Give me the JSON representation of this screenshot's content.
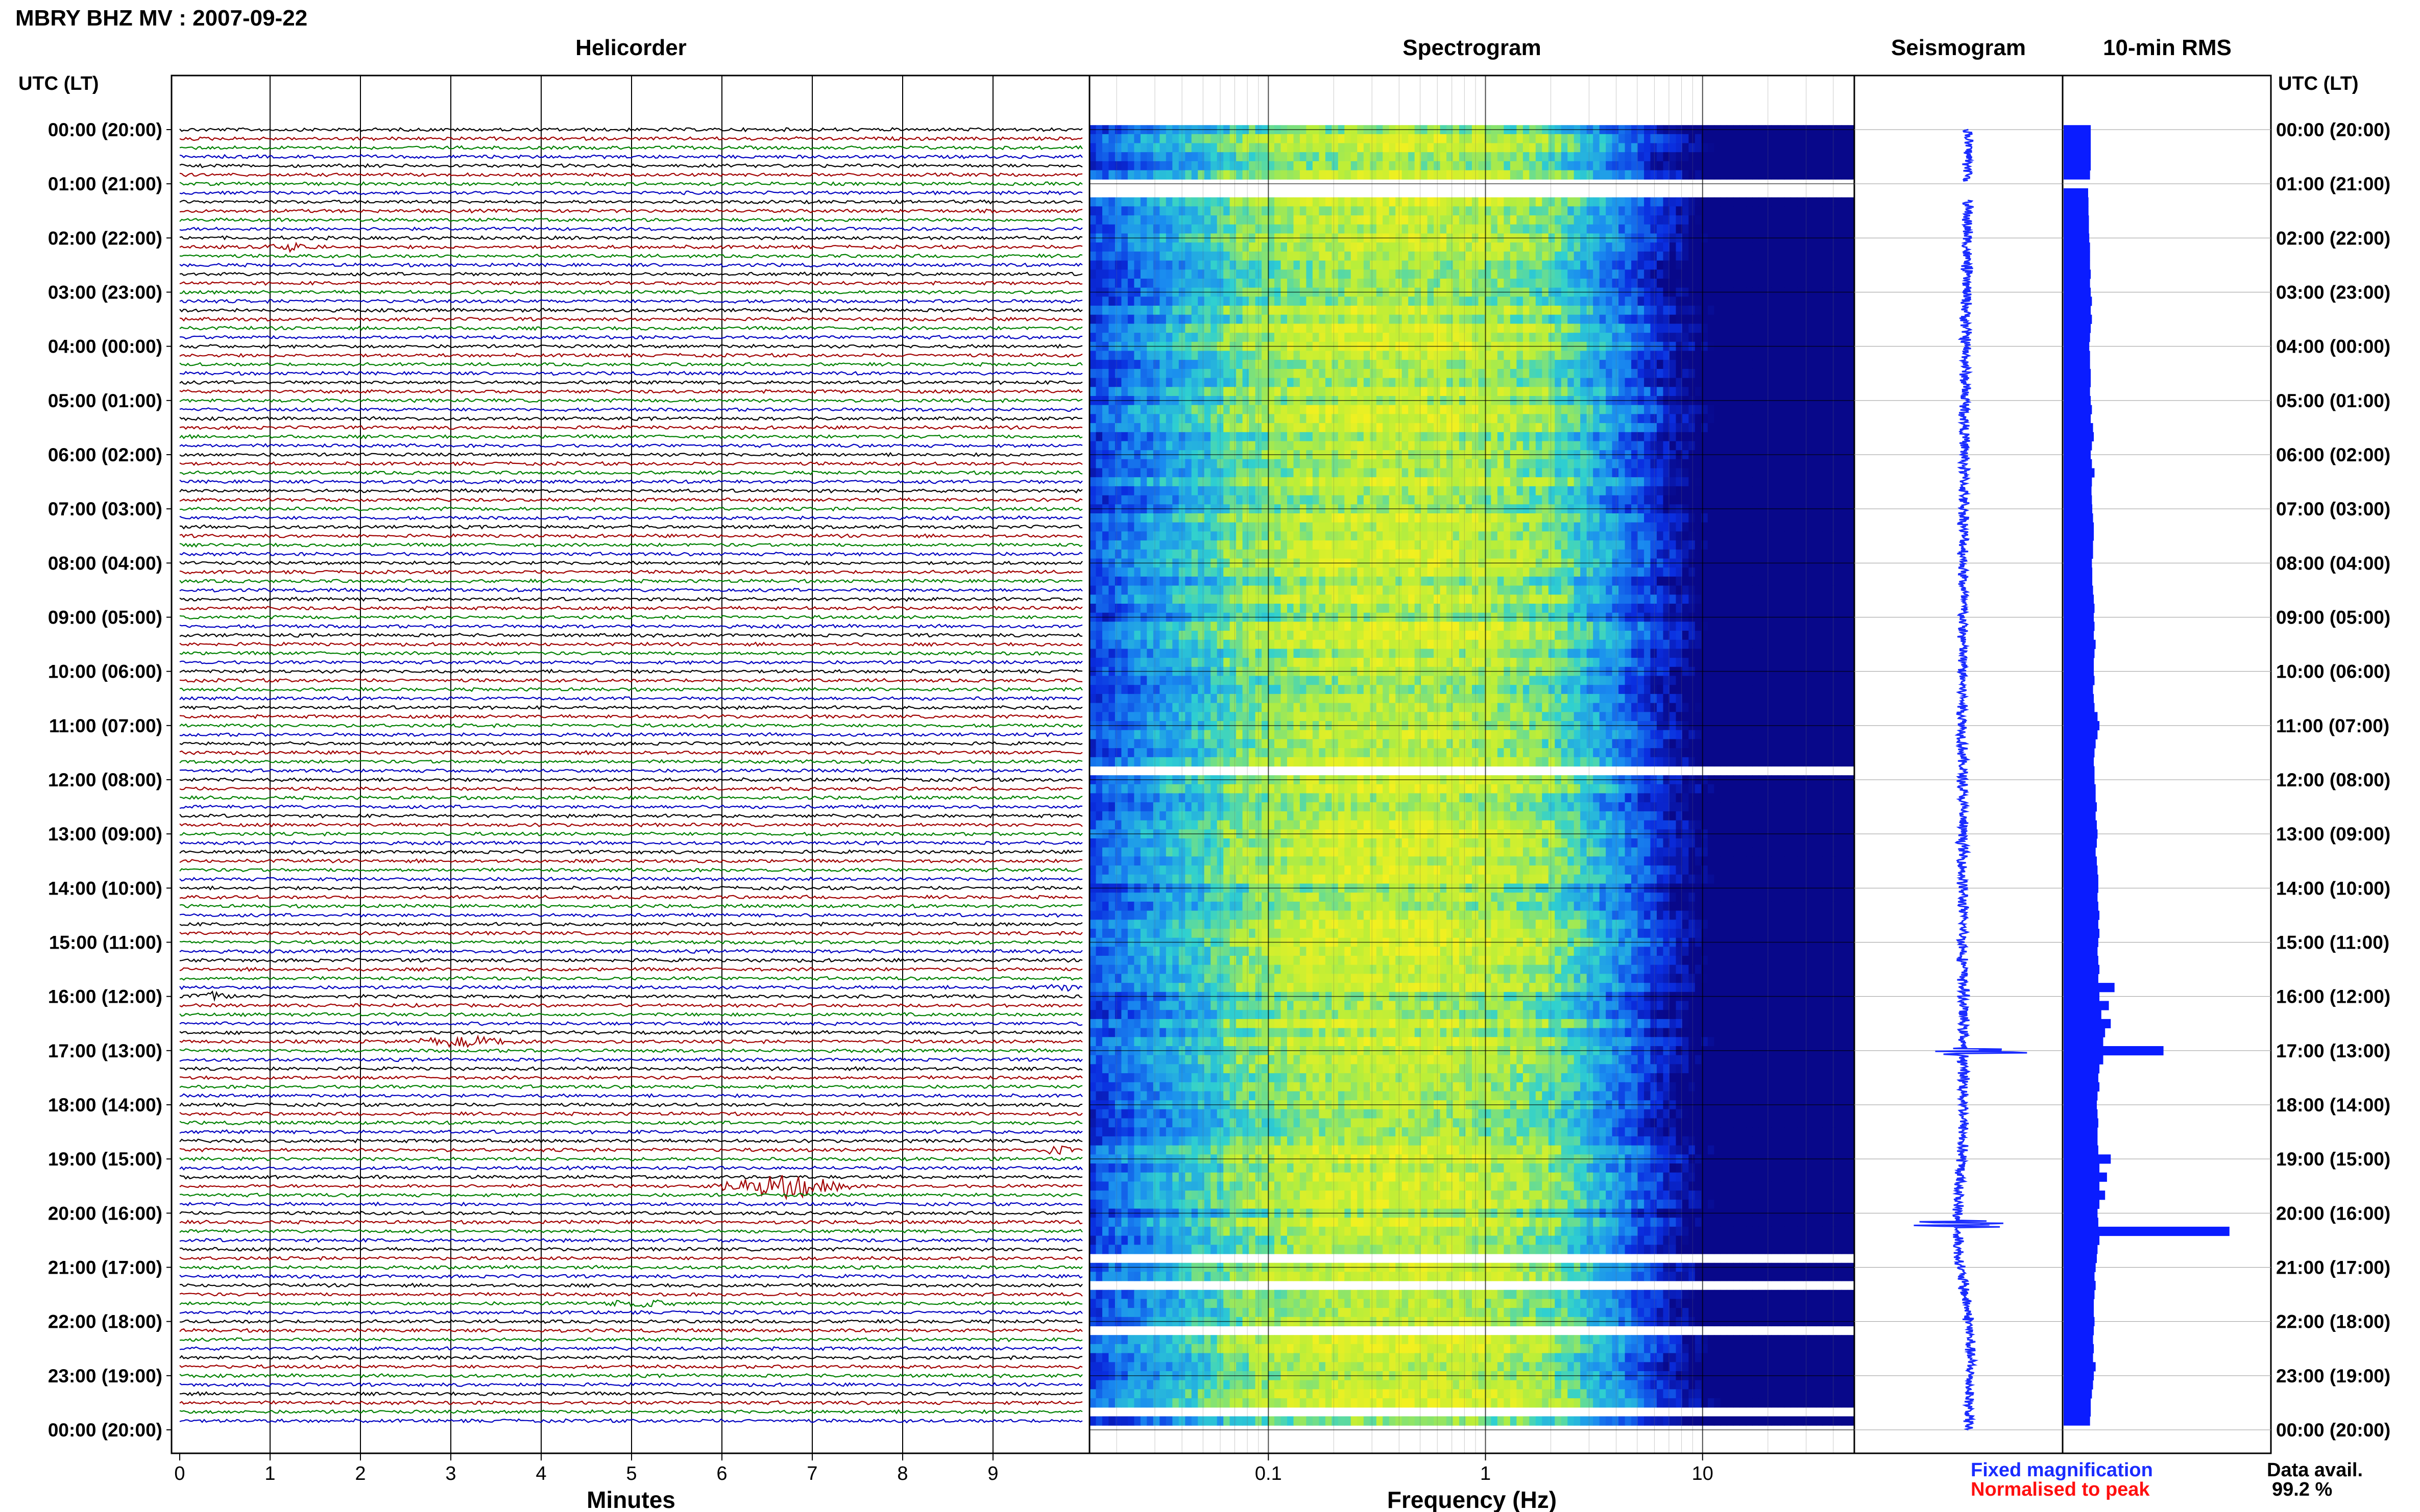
{
  "header": {
    "title": "MBRY BHZ MV : 2007-09-22",
    "utc_label": "UTC (LT)",
    "panels": {
      "helicorder": "Helicorder",
      "spectrogram": "Spectrogram",
      "seismogram": "Seismogram",
      "rms": "10-min RMS"
    }
  },
  "time_labels": [
    "00:00 (20:00)",
    "01:00 (21:00)",
    "02:00 (22:00)",
    "03:00 (23:00)",
    "04:00 (00:00)",
    "05:00 (01:00)",
    "06:00 (02:00)",
    "07:00 (03:00)",
    "08:00 (04:00)",
    "09:00 (05:00)",
    "10:00 (06:00)",
    "11:00 (07:00)",
    "12:00 (08:00)",
    "13:00 (09:00)",
    "14:00 (10:00)",
    "15:00 (11:00)",
    "16:00 (12:00)",
    "17:00 (13:00)",
    "18:00 (14:00)",
    "19:00 (15:00)",
    "20:00 (16:00)",
    "21:00 (17:00)",
    "22:00 (18:00)",
    "23:00 (19:00)",
    "00:00 (20:00)"
  ],
  "footer": {
    "fixed_magnification": "Fixed magnification",
    "normalised_to_peak": "Normalised to peak",
    "data_avail_label": "Data avail.",
    "data_avail_value": "99.2 %"
  },
  "colors": {
    "trace_cycle": [
      "#000000",
      "#a00000",
      "#008000",
      "#0000c0"
    ],
    "seismogram": "#1a2cff",
    "rms": "#0a1cff",
    "fixed_magnification": "#1a2cff",
    "normalised_to_peak": "#ff1010",
    "spectrogram_scale": [
      "#08088a",
      "#0a2ee0",
      "#1a8cf0",
      "#2fd0d0",
      "#b8ee3a",
      "#f2f020"
    ]
  },
  "chart_data": [
    {
      "type": "line",
      "panel": "Helicorder",
      "xlabel": "Minutes",
      "x_ticks": [
        "0",
        "1",
        "2",
        "3",
        "4",
        "5",
        "6",
        "7",
        "8",
        "9"
      ],
      "xlim": [
        0,
        10
      ],
      "rows": 144,
      "row_minutes": 10,
      "events": [
        {
          "row": 13,
          "minute_start": 0.9,
          "minute_end": 1.6,
          "amp": 0.35
        },
        {
          "row": 96,
          "minute_start": 0.0,
          "minute_end": 0.7,
          "amp": 0.35
        },
        {
          "row": 95,
          "minute_start": 9.5,
          "minute_end": 10.0,
          "amp": 0.4
        },
        {
          "row": 101,
          "minute_start": 2.4,
          "minute_end": 4.0,
          "amp": 0.45
        },
        {
          "row": 113,
          "minute_start": 9.4,
          "minute_end": 10.0,
          "amp": 0.35
        },
        {
          "row": 117,
          "minute_start": 5.8,
          "minute_end": 7.5,
          "amp": 1.2
        },
        {
          "row": 130,
          "minute_start": 4.6,
          "minute_end": 5.6,
          "amp": 0.3
        }
      ]
    },
    {
      "type": "heatmap",
      "panel": "Spectrogram",
      "xlabel": "Frequency (Hz)",
      "x_scale": "log",
      "x_ticks": [
        "0.1",
        "1",
        "10"
      ],
      "xlim": [
        0.015,
        50
      ],
      "rows": 144,
      "gap_rows": [
        6,
        7,
        71,
        125,
        128,
        133,
        142
      ]
    },
    {
      "type": "line",
      "panel": "Seismogram",
      "note_events_hours": [
        17.02,
        20.2
      ]
    },
    {
      "type": "bar",
      "panel": "10-min RMS",
      "orientation": "horizontal",
      "bins": 144,
      "values": [
        0.72,
        0.72,
        0.72,
        0.72,
        0.72,
        0.7,
        0.0,
        0.65,
        0.66,
        0.66,
        0.67,
        0.67,
        0.68,
        0.7,
        0.7,
        0.7,
        0.72,
        0.7,
        0.72,
        0.75,
        0.72,
        0.75,
        0.72,
        0.7,
        0.68,
        0.7,
        0.7,
        0.72,
        0.72,
        0.7,
        0.72,
        0.75,
        0.72,
        0.78,
        0.8,
        0.75,
        0.72,
        0.75,
        0.82,
        0.75,
        0.74,
        0.75,
        0.76,
        0.78,
        0.8,
        0.8,
        0.78,
        0.78,
        0.75,
        0.76,
        0.76,
        0.78,
        0.8,
        0.82,
        0.8,
        0.82,
        0.8,
        0.85,
        0.82,
        0.8,
        0.8,
        0.82,
        0.78,
        0.8,
        0.82,
        0.9,
        0.95,
        0.9,
        0.85,
        0.82,
        0.8,
        0.82,
        0.82,
        0.85,
        0.85,
        0.88,
        0.85,
        0.88,
        0.9,
        0.88,
        0.85,
        0.88,
        0.9,
        0.92,
        0.92,
        0.9,
        0.92,
        0.95,
        0.92,
        0.95,
        0.92,
        0.9,
        0.92,
        0.95,
        0.92,
        1.35,
        0.95,
        1.2,
        1.0,
        1.25,
        1.1,
        1.05,
        2.65,
        1.05,
        0.95,
        0.92,
        0.95,
        0.9,
        0.88,
        0.9,
        0.92,
        0.9,
        0.9,
        0.92,
        1.25,
        0.95,
        1.15,
        0.95,
        1.1,
        0.95,
        0.9,
        0.92,
        4.4,
        0.95,
        0.9,
        0.88,
        0.85,
        0.82,
        0.85,
        0.82,
        0.8,
        0.8,
        0.82,
        0.8,
        0.78,
        0.8,
        0.78,
        0.85,
        0.8,
        0.78,
        0.75,
        0.72,
        0.72,
        0.7
      ],
      "xlim": [
        0,
        5.5
      ]
    }
  ]
}
